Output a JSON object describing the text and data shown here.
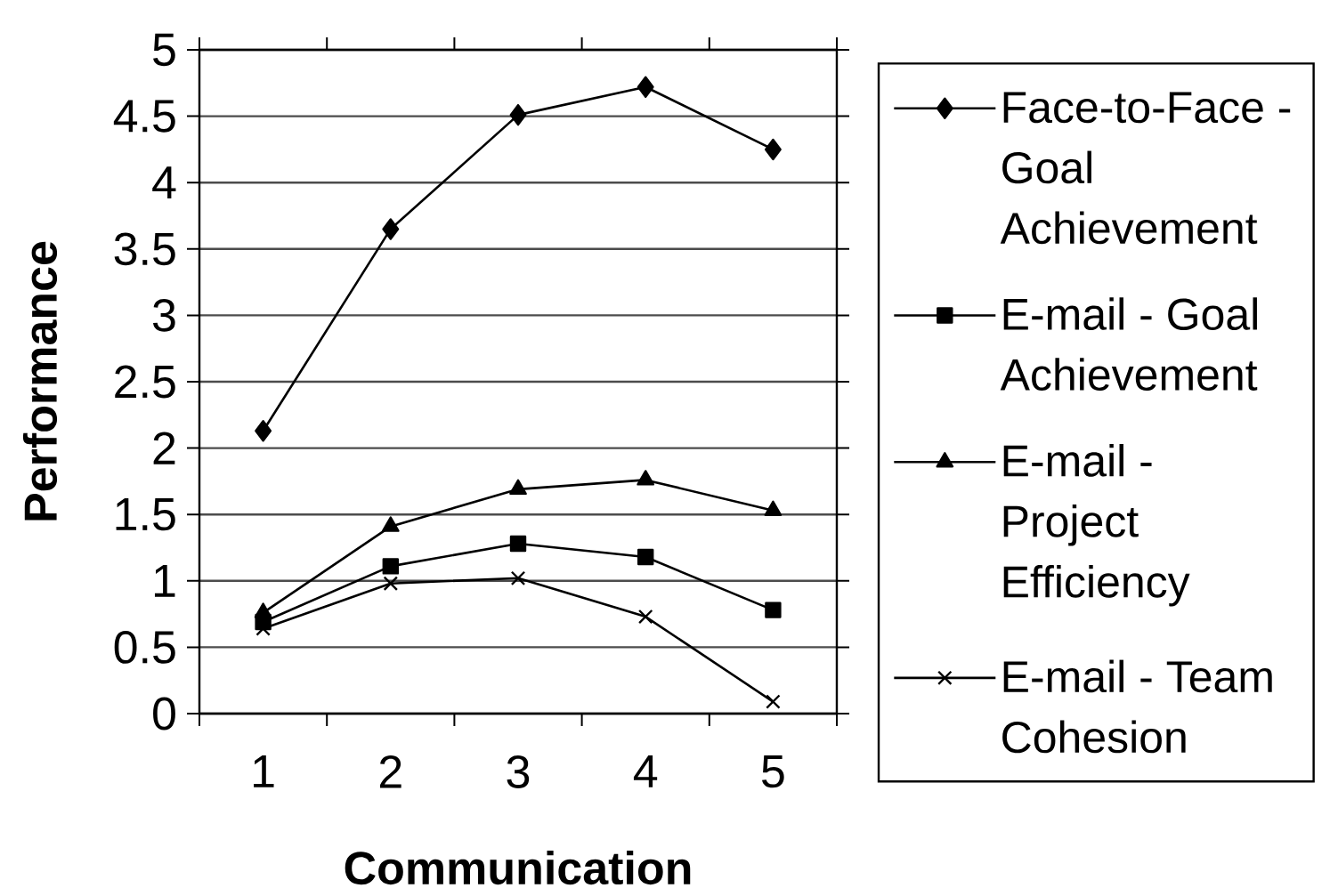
{
  "chart_data": {
    "type": "line",
    "xlabel": "Communication",
    "ylabel": "Performance",
    "categories": [
      "1",
      "2",
      "3",
      "4",
      "5"
    ],
    "ylim": [
      0,
      5
    ],
    "yticks": [
      0,
      0.5,
      1,
      1.5,
      2,
      2.5,
      3,
      3.5,
      4,
      4.5,
      5
    ],
    "grid": "y",
    "legend": "right",
    "line_style": "solid",
    "series": [
      {
        "name": "Face-to-Face - Goal Achievement",
        "color": "#000000",
        "marker": "diamond",
        "values": [
          2.13,
          3.65,
          4.51,
          4.72,
          4.25
        ]
      },
      {
        "name": "E-mail - Goal Achievement",
        "color": "#000000",
        "marker": "square",
        "values": [
          0.69,
          1.11,
          1.28,
          1.18,
          0.78
        ]
      },
      {
        "name": "E-mail - Project Efficiency",
        "color": "#000000",
        "marker": "triangle",
        "values": [
          0.76,
          1.41,
          1.69,
          1.76,
          1.53
        ]
      },
      {
        "name": "E-mail - Team Cohesion",
        "color": "#000000",
        "marker": "cross",
        "values": [
          0.64,
          0.98,
          1.02,
          0.73,
          0.09
        ]
      }
    ]
  }
}
